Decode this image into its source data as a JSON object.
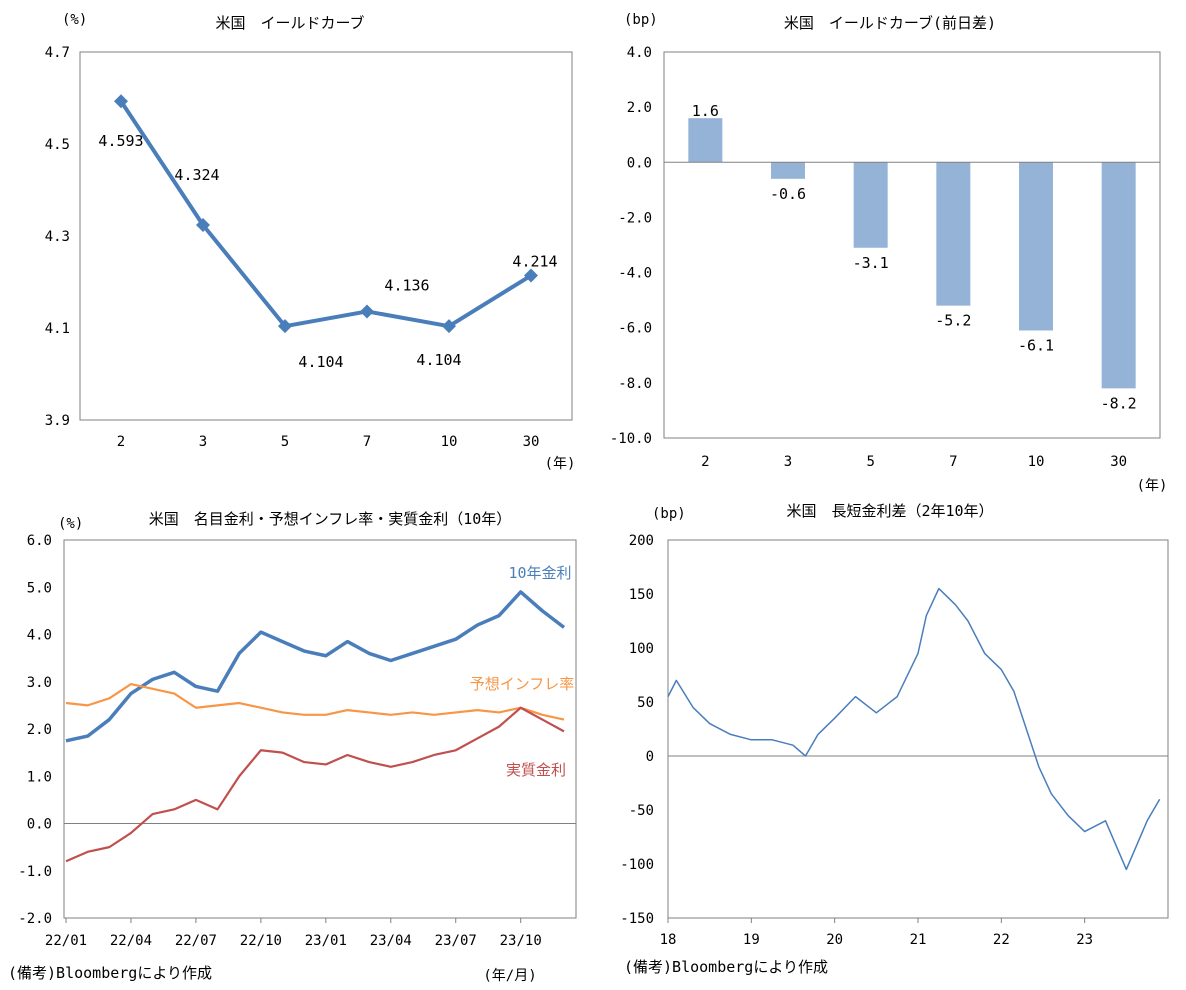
{
  "chart_data": [
    {
      "type": "line",
      "title": "米国　イールドカーブ",
      "ylabel": "(%)",
      "xlabel": "(年)",
      "categories": [
        "2",
        "3",
        "5",
        "7",
        "10",
        "30"
      ],
      "values": [
        4.593,
        4.324,
        4.104,
        4.136,
        4.104,
        4.214
      ],
      "value_labels": [
        "4.593",
        "4.324",
        "4.104",
        "4.136",
        "4.104",
        "4.214"
      ],
      "ylim": [
        3.9,
        4.7
      ],
      "yticks": [
        "3.9",
        "4.1",
        "4.3",
        "4.5",
        "4.7"
      ],
      "grid": false,
      "color": "#4a7ebb"
    },
    {
      "type": "bar",
      "title": "米国　イールドカーブ(前日差)",
      "ylabel": "(bp)",
      "xlabel": "(年)",
      "categories": [
        "2",
        "3",
        "5",
        "7",
        "10",
        "30"
      ],
      "values": [
        1.6,
        -0.6,
        -3.1,
        -5.2,
        -6.1,
        -8.2
      ],
      "value_labels": [
        "1.6",
        "-0.6",
        "-3.1",
        "-5.2",
        "-6.1",
        "-8.2"
      ],
      "ylim": [
        -10.0,
        4.0
      ],
      "yticks": [
        "4.0",
        "2.0",
        "0.0",
        "-2.0",
        "-4.0",
        "-6.0",
        "-8.0",
        "-10.0"
      ],
      "grid": false,
      "color": "#95b3d7"
    },
    {
      "type": "line",
      "title": "米国　名目金利・予想インフレ率・実質金利（10年）",
      "ylabel": "(%)",
      "xlabel": "(年/月)",
      "note": "(備考)Bloombergにより作成",
      "x_ticks": [
        "22/01",
        "22/04",
        "22/07",
        "22/10",
        "23/01",
        "23/04",
        "23/07",
        "23/10"
      ],
      "ylim": [
        -2.0,
        6.0
      ],
      "yticks": [
        "6.0",
        "5.0",
        "4.0",
        "3.0",
        "2.0",
        "1.0",
        "0.0",
        "-1.0",
        "-2.0"
      ],
      "grid": false,
      "series": [
        {
          "name": "10年金利",
          "color": "#4a7ebb",
          "x": [
            "22/01",
            "22/02",
            "22/03",
            "22/04",
            "22/05",
            "22/06",
            "22/07",
            "22/08",
            "22/09",
            "22/10",
            "22/11",
            "22/12",
            "23/01",
            "23/02",
            "23/03",
            "23/04",
            "23/05",
            "23/06",
            "23/07",
            "23/08",
            "23/09",
            "23/10",
            "23/11",
            "23/12"
          ],
          "values": [
            1.75,
            1.85,
            2.2,
            2.75,
            3.05,
            3.2,
            2.9,
            2.8,
            3.6,
            4.05,
            3.85,
            3.65,
            3.55,
            3.85,
            3.6,
            3.45,
            3.6,
            3.75,
            3.9,
            4.2,
            4.4,
            4.9,
            4.5,
            4.15
          ]
        },
        {
          "name": "予想インフレ率",
          "color": "#f79646",
          "x": [
            "22/01",
            "22/02",
            "22/03",
            "22/04",
            "22/05",
            "22/06",
            "22/07",
            "22/08",
            "22/09",
            "22/10",
            "22/11",
            "22/12",
            "23/01",
            "23/02",
            "23/03",
            "23/04",
            "23/05",
            "23/06",
            "23/07",
            "23/08",
            "23/09",
            "23/10",
            "23/11",
            "23/12"
          ],
          "values": [
            2.55,
            2.5,
            2.65,
            2.95,
            2.85,
            2.75,
            2.45,
            2.5,
            2.55,
            2.45,
            2.35,
            2.3,
            2.3,
            2.4,
            2.35,
            2.3,
            2.35,
            2.3,
            2.35,
            2.4,
            2.35,
            2.45,
            2.3,
            2.2
          ]
        },
        {
          "name": "実質金利",
          "color": "#c0504d",
          "x": [
            "22/01",
            "22/02",
            "22/03",
            "22/04",
            "22/05",
            "22/06",
            "22/07",
            "22/08",
            "22/09",
            "22/10",
            "22/11",
            "22/12",
            "23/01",
            "23/02",
            "23/03",
            "23/04",
            "23/05",
            "23/06",
            "23/07",
            "23/08",
            "23/09",
            "23/10",
            "23/11",
            "23/12"
          ],
          "values": [
            -0.8,
            -0.6,
            -0.5,
            -0.2,
            0.2,
            0.3,
            0.5,
            0.3,
            1.0,
            1.55,
            1.5,
            1.3,
            1.25,
            1.45,
            1.3,
            1.2,
            1.3,
            1.45,
            1.55,
            1.8,
            2.05,
            2.45,
            2.2,
            1.95
          ]
        }
      ]
    },
    {
      "type": "line",
      "title": "米国　長短金利差（2年10年）",
      "ylabel": "(bp)",
      "note": "(備考)Bloombergにより作成",
      "x_ticks": [
        "18",
        "19",
        "20",
        "21",
        "22",
        "23"
      ],
      "ylim": [
        -150,
        200
      ],
      "yticks": [
        "200",
        "150",
        "100",
        "50",
        "0",
        "-50",
        "-100",
        "-150"
      ],
      "grid": false,
      "series": [
        {
          "color": "#4a7ebb",
          "x": [
            2018.0,
            2018.1,
            2018.3,
            2018.5,
            2018.75,
            2019.0,
            2019.25,
            2019.5,
            2019.65,
            2019.8,
            2020.0,
            2020.25,
            2020.5,
            2020.75,
            2021.0,
            2021.1,
            2021.25,
            2021.45,
            2021.6,
            2021.8,
            2022.0,
            2022.15,
            2022.3,
            2022.45,
            2022.6,
            2022.8,
            2023.0,
            2023.25,
            2023.5,
            2023.75,
            2023.9
          ],
          "values": [
            55,
            70,
            45,
            30,
            20,
            15,
            15,
            10,
            0,
            20,
            35,
            55,
            40,
            55,
            95,
            130,
            155,
            140,
            125,
            95,
            80,
            60,
            25,
            -10,
            -35,
            -55,
            -70,
            -60,
            -105,
            -60,
            -40
          ]
        }
      ]
    }
  ]
}
